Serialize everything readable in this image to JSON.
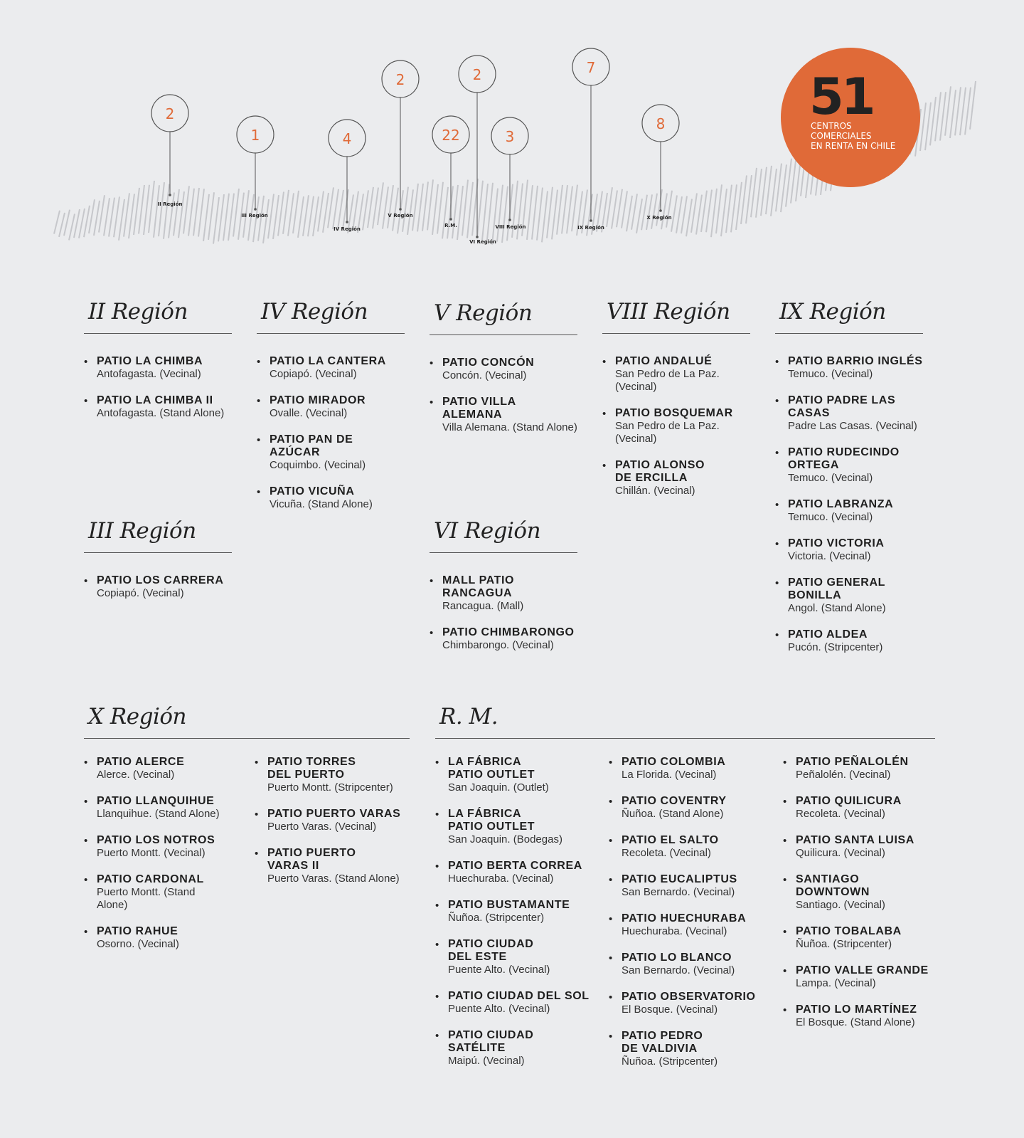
{
  "map": {
    "pins": [
      {
        "count": "2",
        "label": "II Región"
      },
      {
        "count": "1",
        "label": "III Región"
      },
      {
        "count": "4",
        "label": "IV Región"
      },
      {
        "count": "2",
        "label": "V Región"
      },
      {
        "count": "22",
        "label": "R.M."
      },
      {
        "count": "2",
        "label": "VI Región"
      },
      {
        "count": "3",
        "label": "VIII Región"
      },
      {
        "count": "7",
        "label": "IX Región"
      },
      {
        "count": "8",
        "label": "X Región"
      }
    ],
    "total": {
      "value": "51",
      "caption": [
        "CENTROS",
        "COMERCIALES",
        "EN RENTA EN CHILE"
      ]
    },
    "colors": {
      "accent": "#e06a38",
      "stripes": "#c6c7cb",
      "ring": "#555555"
    }
  },
  "regions": {
    "r2": {
      "title": "II Región",
      "items": [
        {
          "name": "PATIO LA CHIMBA",
          "loc": "Antofagasta. (Vecinal)"
        },
        {
          "name": "PATIO LA CHIMBA II",
          "loc": "Antofagasta. (Stand Alone)"
        }
      ]
    },
    "r3": {
      "title": "III Región",
      "items": [
        {
          "name": "PATIO LOS CARRERA",
          "loc": "Copiapó. (Vecinal)"
        }
      ]
    },
    "r4": {
      "title": "IV Región",
      "items": [
        {
          "name": "PATIO LA CANTERA",
          "loc": "Copiapó. (Vecinal)"
        },
        {
          "name": "PATIO MIRADOR",
          "loc": "Ovalle. (Vecinal)"
        },
        {
          "name": "PATIO PAN DE AZÚCAR",
          "loc": "Coquimbo. (Vecinal)"
        },
        {
          "name": "PATIO VICUÑA",
          "loc": "Vicuña. (Stand Alone)"
        }
      ]
    },
    "r5": {
      "title": "V Región",
      "items": [
        {
          "name": "PATIO CONCÓN",
          "loc": "Concón. (Vecinal)"
        },
        {
          "name": "PATIO VILLA ALEMANA",
          "loc": "Villa Alemana. (Stand Alone)"
        }
      ]
    },
    "r6": {
      "title": "VI Región",
      "items": [
        {
          "name": "MALL PATIO RANCAGUA",
          "loc": "Rancagua. (Mall)"
        },
        {
          "name": "PATIO CHIMBARONGO",
          "loc": "Chimbarongo. (Vecinal)"
        }
      ]
    },
    "r8": {
      "title": "VIII Región",
      "items": [
        {
          "name": "PATIO ANDALUÉ",
          "loc": "San Pedro de La Paz.\n(Vecinal)"
        },
        {
          "name": "PATIO BOSQUEMAR",
          "loc": "San Pedro de La Paz.\n(Vecinal)"
        },
        {
          "name": "PATIO ALONSO\nDE ERCILLA",
          "loc": "Chillán. (Vecinal)"
        }
      ]
    },
    "r9": {
      "title": "IX Región",
      "items": [
        {
          "name": "PATIO BARRIO INGLÉS",
          "loc": "Temuco. (Vecinal)"
        },
        {
          "name": "PATIO PADRE LAS CASAS",
          "loc": "Padre Las Casas. (Vecinal)"
        },
        {
          "name": "PATIO RUDECINDO\nORTEGA",
          "loc": "Temuco. (Vecinal)"
        },
        {
          "name": "PATIO LABRANZA",
          "loc": "Temuco. (Vecinal)"
        },
        {
          "name": "PATIO VICTORIA",
          "loc": "Victoria. (Vecinal)"
        },
        {
          "name": "PATIO GENERAL\nBONILLA",
          "loc": "Angol. (Stand Alone)"
        },
        {
          "name": "PATIO ALDEA",
          "loc": "Pucón. (Stripcenter)"
        }
      ]
    },
    "r10": {
      "title": "X Región",
      "columns": [
        [
          {
            "name": "PATIO ALERCE",
            "loc": "Alerce. (Vecinal)"
          },
          {
            "name": "PATIO LLANQUIHUE",
            "loc": "Llanquihue. (Stand Alone)"
          },
          {
            "name": "PATIO LOS NOTROS",
            "loc": "Puerto Montt. (Vecinal)"
          },
          {
            "name": "PATIO CARDONAL",
            "loc": "Puerto Montt. (Stand\nAlone)"
          },
          {
            "name": "PATIO RAHUE",
            "loc": "Osorno. (Vecinal)"
          }
        ],
        [
          {
            "name": "PATIO TORRES\nDEL PUERTO",
            "loc": "Puerto Montt. (Stripcenter)"
          },
          {
            "name": "PATIO PUERTO VARAS",
            "loc": "Puerto Varas. (Vecinal)"
          },
          {
            "name": "PATIO PUERTO\nVARAS II",
            "loc": "Puerto Varas. (Stand Alone)"
          }
        ]
      ]
    },
    "rm": {
      "title": "R. M.",
      "columns": [
        [
          {
            "name": "LA FÁBRICA\nPATIO OUTLET",
            "loc": "San Joaquin. (Outlet)"
          },
          {
            "name": "LA FÁBRICA\nPATIO OUTLET",
            "loc": "San Joaquin. (Bodegas)"
          },
          {
            "name": "PATIO BERTA CORREA",
            "loc": "Huechuraba. (Vecinal)"
          },
          {
            "name": "PATIO BUSTAMANTE",
            "loc": "Ñuñoa. (Stripcenter)"
          },
          {
            "name": "PATIO CIUDAD\nDEL ESTE",
            "loc": "Puente Alto. (Vecinal)"
          },
          {
            "name": "PATIO CIUDAD DEL SOL",
            "loc": "Puente Alto. (Vecinal)"
          },
          {
            "name": "PATIO CIUDAD\nSATÉLITE",
            "loc": "Maipú. (Vecinal)"
          }
        ],
        [
          {
            "name": "PATIO COLOMBIA",
            "loc": "La Florida. (Vecinal)"
          },
          {
            "name": "PATIO COVENTRY",
            "loc": "Ñuñoa. (Stand Alone)"
          },
          {
            "name": "PATIO EL SALTO",
            "loc": "Recoleta. (Vecinal)"
          },
          {
            "name": "PATIO EUCALIPTUS",
            "loc": "San Bernardo. (Vecinal)"
          },
          {
            "name": "PATIO HUECHURABA",
            "loc": "Huechuraba. (Vecinal)"
          },
          {
            "name": "PATIO LO BLANCO",
            "loc": "San Bernardo. (Vecinal)"
          },
          {
            "name": "PATIO OBSERVATORIO",
            "loc": "El Bosque. (Vecinal)"
          },
          {
            "name": "PATIO PEDRO\nDE VALDIVIA",
            "loc": "Ñuñoa. (Stripcenter)"
          }
        ],
        [
          {
            "name": "PATIO PEÑALOLÉN",
            "loc": "Peñalolén. (Vecinal)"
          },
          {
            "name": "PATIO QUILICURA",
            "loc": "Recoleta. (Vecinal)"
          },
          {
            "name": "PATIO SANTA LUISA",
            "loc": "Quilicura. (Vecinal)"
          },
          {
            "name": "SANTIAGO\nDOWNTOWN",
            "loc": "Santiago. (Vecinal)"
          },
          {
            "name": "PATIO TOBALABA",
            "loc": "Ñuñoa. (Stripcenter)"
          },
          {
            "name": "PATIO VALLE GRANDE",
            "loc": "Lampa. (Vecinal)"
          },
          {
            "name": "PATIO LO MARTÍNEZ",
            "loc": "El Bosque. (Stand Alone)"
          }
        ]
      ]
    }
  }
}
